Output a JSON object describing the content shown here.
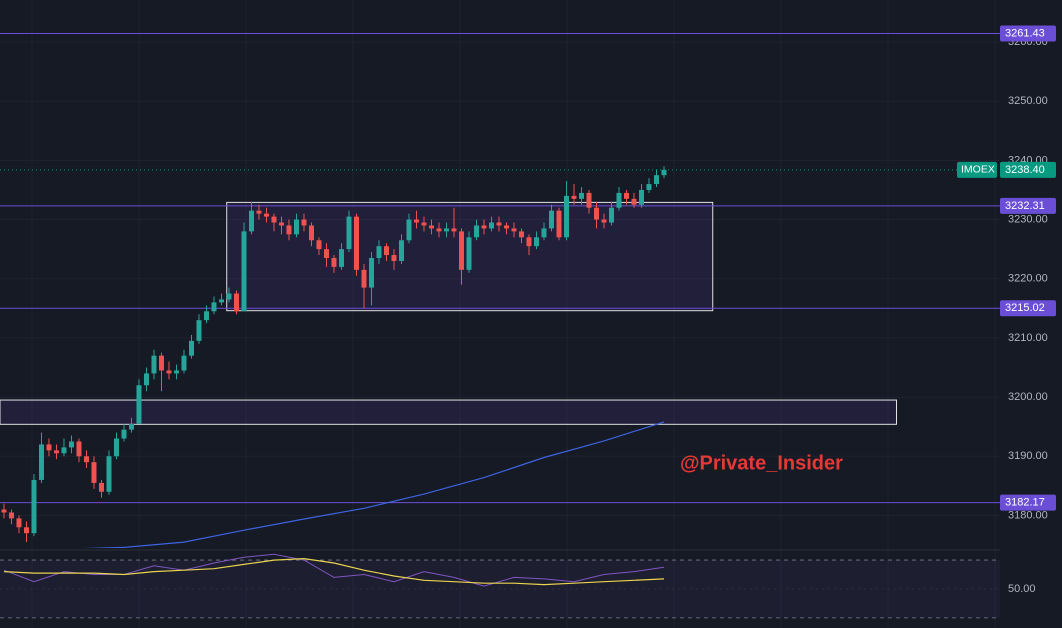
{
  "chart_data": {
    "type": "candlestick",
    "open": [
      3181,
      3180.5,
      3179.5,
      3178,
      3177,
      3186,
      3192,
      3191,
      3190.5,
      3191.5,
      3192.5,
      3190,
      3189,
      3185.5,
      3184,
      3190,
      3193,
      3194.5,
      3195.5,
      3202,
      3204,
      3207,
      3204.5,
      3204,
      3204.5,
      3207,
      3209.5,
      3213,
      3214.5,
      3216,
      3216.5,
      3217.5,
      3214.5,
      3228,
      3231.5,
      3231,
      3230.5,
      3229.5,
      3229,
      3227.5,
      3230,
      3229,
      3226.5,
      3225,
      3223.5,
      3222,
      3225,
      3230.5,
      3221.5,
      3218.5,
      3223.5,
      3225.5,
      3224,
      3223,
      3226.5,
      3230,
      3229.5,
      3229,
      3228.5,
      3228,
      3228.5,
      3228,
      3221.5,
      3227,
      3229,
      3228.5,
      3229.5,
      3229,
      3228.5,
      3228,
      3227,
      3225.5,
      3227,
      3228.5,
      3231.5,
      3227,
      3234,
      3233.5,
      3234.5,
      3232,
      3230,
      3229.5,
      3232,
      3234.5,
      3233.5,
      3232.5,
      3235,
      3236,
      3237.5
    ],
    "high": [
      3182,
      3181,
      3180,
      3179,
      3187,
      3194,
      3193,
      3192,
      3193,
      3193.5,
      3193,
      3191,
      3190,
      3186,
      3191,
      3194,
      3195.5,
      3196.5,
      3203,
      3205,
      3208,
      3207.5,
      3206,
      3205.5,
      3208,
      3210.5,
      3214,
      3215.5,
      3217,
      3217.5,
      3218.5,
      3218,
      3229.5,
      3233,
      3232.5,
      3232,
      3231,
      3230.5,
      3230,
      3231,
      3231,
      3229.5,
      3227,
      3226,
      3224,
      3226,
      3231.5,
      3231,
      3222.5,
      3224.5,
      3226.5,
      3226,
      3225,
      3227.5,
      3231,
      3231.5,
      3230.5,
      3230,
      3229.5,
      3229.5,
      3232,
      3228.5,
      3228,
      3230,
      3230,
      3230.5,
      3230.5,
      3229.5,
      3229.5,
      3228.5,
      3227.5,
      3228,
      3229.5,
      3232.5,
      3232,
      3236.5,
      3236,
      3235.5,
      3235,
      3233,
      3231,
      3233,
      3235.5,
      3235,
      3234.5,
      3236,
      3237,
      3238.5,
      3239
    ],
    "low": [
      3179.5,
      3178.5,
      3177,
      3175.5,
      3176.5,
      3185.5,
      3190,
      3189.5,
      3190,
      3190.5,
      3189,
      3188,
      3184.5,
      3183,
      3183.5,
      3189.5,
      3192.5,
      3194,
      3196,
      3201,
      3203,
      3201,
      3203,
      3203,
      3204,
      3206.5,
      3209,
      3212.5,
      3214,
      3215.5,
      3216,
      3214,
      3214.5,
      3227.5,
      3230,
      3229.5,
      3228,
      3227.5,
      3226.5,
      3227,
      3228,
      3225.5,
      3224,
      3222,
      3221,
      3221.5,
      3224.5,
      3220.5,
      3215,
      3215.5,
      3222.5,
      3223,
      3221.5,
      3222.5,
      3226,
      3228.5,
      3228,
      3227.5,
      3227,
      3227,
      3227,
      3219,
      3221,
      3226.5,
      3227.5,
      3228,
      3228,
      3227.5,
      3227,
      3226,
      3224,
      3225,
      3226.5,
      3228,
      3226.5,
      3226.5,
      3232.5,
      3232.5,
      3231,
      3228.5,
      3228.5,
      3229,
      3231.5,
      3232.5,
      3232,
      3232,
      3234.5,
      3235.5,
      3237
    ],
    "close": [
      3180.5,
      3179.5,
      3178,
      3177,
      3186,
      3192,
      3191,
      3190.5,
      3191.5,
      3192.5,
      3190,
      3189,
      3185.5,
      3184,
      3190,
      3193,
      3194.5,
      3195.5,
      3202,
      3204,
      3207,
      3204.5,
      3204,
      3204.5,
      3207,
      3209.5,
      3213,
      3214.5,
      3216,
      3216.5,
      3217.5,
      3214.5,
      3228,
      3231.5,
      3231,
      3230.5,
      3229.5,
      3229,
      3227.5,
      3230,
      3229,
      3226.5,
      3225,
      3223.5,
      3222,
      3225,
      3230.5,
      3221.5,
      3218.5,
      3223.5,
      3225.5,
      3224,
      3223,
      3226.5,
      3230,
      3229.5,
      3229,
      3228.5,
      3228,
      3228.5,
      3228,
      3221.5,
      3227,
      3229,
      3228.5,
      3229.5,
      3229,
      3228.5,
      3228,
      3227,
      3225.5,
      3227,
      3228.5,
      3231.5,
      3227,
      3234,
      3233.5,
      3234.5,
      3232,
      3230,
      3229.5,
      3232,
      3234.5,
      3233.5,
      3232.5,
      3235,
      3236,
      3237.5,
      3238.4
    ],
    "up_color": "#26a69a",
    "down_color": "#ef5350",
    "ma_x": [
      0,
      8,
      16,
      24,
      32,
      40,
      48,
      56,
      64,
      72,
      80,
      88
    ],
    "ma_values": [
      3174.4,
      3174.3,
      3174.6,
      3175.5,
      3177.5,
      3179.4,
      3181.2,
      3183.6,
      3186.4,
      3189.8,
      3192.6,
      3195.8
    ],
    "ma_color": "#3d63e0",
    "xlim": [
      -0.53,
      132.8
    ],
    "ylim": [
      3174.5,
      3267.1
    ],
    "yticks": [
      {
        "value": 3180,
        "label": "3180.00"
      },
      {
        "value": 3190,
        "label": "3190.00"
      },
      {
        "value": 3200,
        "label": "3200.00"
      },
      {
        "value": 3210,
        "label": "3210.00"
      },
      {
        "value": 3220,
        "label": "3220.00"
      },
      {
        "value": 3230,
        "label": "3230.00"
      },
      {
        "value": 3240,
        "label": "3240.00"
      },
      {
        "value": 3250,
        "label": "3250.00"
      },
      {
        "value": 3260,
        "label": "3260.00"
      }
    ],
    "grid": true,
    "levels": [
      {
        "value": 3261.43,
        "label": "3261.43"
      },
      {
        "value": 3232.31,
        "label": "3232.31"
      },
      {
        "value": 3215.02,
        "label": "3215.02"
      },
      {
        "value": 3182.17,
        "label": "3182.17"
      }
    ],
    "level_color": "#6a4fd6",
    "last_price": {
      "value": 3238.4,
      "label": "3238.40",
      "symbol": "IMOEX"
    },
    "last_color": "#089981",
    "boxes": [
      {
        "x0": 29.7,
        "x1": 94.5,
        "top": 3232.9,
        "bottom": 3214.6
      },
      {
        "x0": -0.53,
        "x1": 119,
        "top": 3199.5,
        "bottom": 3195.4
      }
    ],
    "watermark": "@Private_Insider",
    "rsi": {
      "x": [
        0,
        4,
        8,
        12,
        16,
        20,
        24,
        28,
        32,
        36,
        40,
        44,
        48,
        52,
        56,
        60,
        64,
        68,
        72,
        76,
        80,
        84,
        88
      ],
      "values": [
        63,
        55,
        62,
        60,
        60,
        66,
        63,
        68,
        72,
        74,
        70,
        58,
        60,
        55,
        62,
        58,
        52,
        58,
        57,
        55,
        60,
        62,
        65
      ],
      "ma_values": [
        62,
        61,
        61,
        61,
        60,
        62,
        63,
        64,
        67,
        70,
        71,
        68,
        63,
        59,
        56,
        55,
        54,
        54,
        53,
        54,
        55,
        56,
        57
      ],
      "color": "#7e57c2",
      "ma_color": "#e8d44d",
      "ylim": [
        23,
        73.5
      ],
      "yticks": [
        {
          "value": 50,
          "label": "50.00"
        }
      ],
      "bands": [
        70,
        30
      ]
    }
  }
}
